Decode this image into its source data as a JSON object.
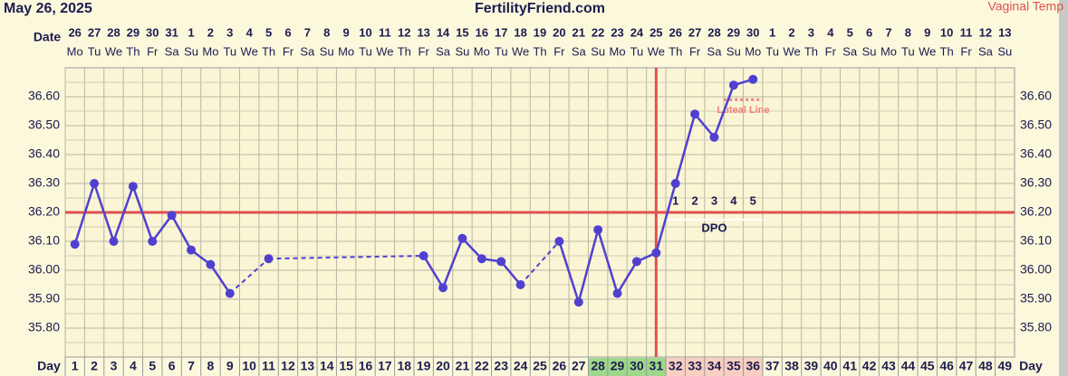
{
  "chart_data": {
    "type": "line",
    "title": "FertilityFriend.com",
    "subtitle": "May 26, 2025",
    "date_row_label": "Date",
    "day_row_label": "Day",
    "x": [
      1,
      2,
      3,
      4,
      5,
      6,
      7,
      8,
      9,
      10,
      11,
      12,
      13,
      14,
      15,
      16,
      17,
      18,
      19,
      20,
      21,
      22,
      23,
      24,
      25,
      26,
      27,
      28,
      29,
      30,
      31,
      32,
      33,
      34,
      35,
      36,
      37,
      38,
      39,
      40,
      41,
      42,
      43,
      44,
      45,
      46,
      47,
      48,
      49
    ],
    "xlim": [
      0.5,
      49.5
    ],
    "dates": [
      26,
      27,
      28,
      29,
      30,
      31,
      1,
      2,
      3,
      4,
      5,
      6,
      7,
      8,
      9,
      10,
      11,
      12,
      13,
      14,
      15,
      16,
      17,
      18,
      19,
      20,
      21,
      22,
      23,
      24,
      25,
      26,
      27,
      28,
      29,
      30,
      1,
      2,
      3,
      4,
      5,
      6,
      7,
      8,
      9,
      10,
      11,
      12,
      13
    ],
    "weekdays": [
      "Mo",
      "Tu",
      "We",
      "Th",
      "Fr",
      "Sa",
      "Su",
      "Mo",
      "Tu",
      "We",
      "Th",
      "Fr",
      "Sa",
      "Su",
      "Mo",
      "Tu",
      "We",
      "Th",
      "Fr",
      "Sa",
      "Su",
      "Mo",
      "Tu",
      "We",
      "Th",
      "Fr",
      "Sa",
      "Su",
      "Mo",
      "Tu",
      "We",
      "Th",
      "Fr",
      "Sa",
      "Su",
      "Mo",
      "Tu",
      "We",
      "Th",
      "Fr",
      "Sa",
      "Su",
      "Mo",
      "Tu",
      "We",
      "Th",
      "Fr",
      "Sa",
      "Su"
    ],
    "series": [
      {
        "name": "Vaginal Temp",
        "color": "#5040d0",
        "values": [
          36.09,
          36.3,
          36.1,
          36.29,
          36.1,
          36.19,
          36.07,
          36.02,
          35.92,
          null,
          36.04,
          null,
          null,
          null,
          null,
          null,
          null,
          null,
          36.05,
          35.94,
          36.11,
          36.04,
          36.03,
          35.95,
          null,
          36.1,
          35.89,
          36.14,
          35.92,
          36.03,
          36.06,
          36.3,
          36.54,
          36.46,
          36.64,
          36.66,
          null,
          null,
          null,
          null,
          null,
          null,
          null,
          null,
          null,
          null,
          null,
          null,
          null
        ]
      }
    ],
    "ylim": [
      35.7,
      36.7
    ],
    "yticks": [
      {
        "value": 35.8,
        "label": "35.80"
      },
      {
        "value": 35.9,
        "label": "35.90"
      },
      {
        "value": 36.0,
        "label": "36.00"
      },
      {
        "value": 36.1,
        "label": "36.10"
      },
      {
        "value": 36.2,
        "label": "36.20"
      },
      {
        "value": 36.3,
        "label": "36.30"
      },
      {
        "value": 36.4,
        "label": "36.40"
      },
      {
        "value": 36.5,
        "label": "36.50"
      },
      {
        "value": 36.6,
        "label": "36.60"
      }
    ],
    "grid": true,
    "coverline": 36.2,
    "coverline_color": "#e05050",
    "ovulation_day": 31,
    "dpo": {
      "label": "DPO",
      "days": [
        32,
        33,
        34,
        35,
        36
      ],
      "labels": [
        1,
        2,
        3,
        4,
        5
      ]
    },
    "luteal_line": {
      "label": "Luteal Line",
      "value": 36.59,
      "days": [
        35,
        36
      ],
      "color": "#f08080"
    },
    "fertile_days": {
      "days": [
        28,
        29,
        30,
        31
      ],
      "color": "#9ed88a"
    },
    "luteal_days": {
      "days": [
        32,
        33,
        34,
        35,
        36
      ],
      "color": "#f8cfc0"
    }
  }
}
